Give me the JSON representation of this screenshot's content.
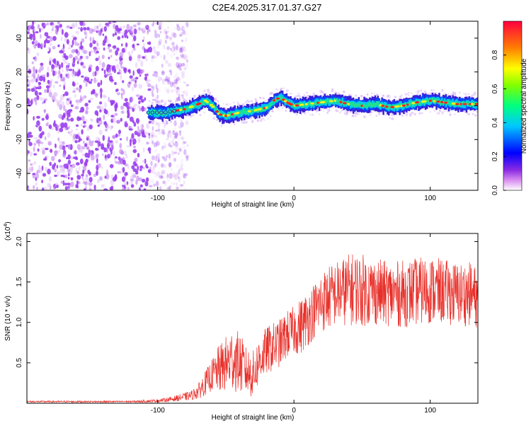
{
  "title": "C2E4.2025.317.01.37.G27",
  "chart_data": [
    {
      "type": "heatmap",
      "name": "spectrogram",
      "xlabel": "Height of straight line (km)",
      "ylabel": "Frequency (Hz)",
      "xlim": [
        -196,
        135
      ],
      "ylim": [
        -50,
        50
      ],
      "x_ticks": [
        -100,
        0,
        100
      ],
      "y_ticks": [
        -40,
        -20,
        0,
        20,
        40
      ],
      "noise_region_x": [
        -196,
        -78
      ],
      "signal_start_x": -107,
      "signal_trace": [
        {
          "x": -107,
          "y": -4
        },
        {
          "x": -95,
          "y": -4
        },
        {
          "x": -80,
          "y": -2
        },
        {
          "x": -70,
          "y": 1
        },
        {
          "x": -65,
          "y": 3
        },
        {
          "x": -60,
          "y": 0
        },
        {
          "x": -55,
          "y": -5
        },
        {
          "x": -50,
          "y": -6
        },
        {
          "x": -40,
          "y": -4
        },
        {
          "x": -30,
          "y": -3
        },
        {
          "x": -20,
          "y": -1
        },
        {
          "x": -15,
          "y": 3
        },
        {
          "x": -10,
          "y": 5
        },
        {
          "x": -5,
          "y": 2
        },
        {
          "x": 0,
          "y": 0
        },
        {
          "x": 10,
          "y": 1
        },
        {
          "x": 20,
          "y": 2
        },
        {
          "x": 30,
          "y": 3
        },
        {
          "x": 40,
          "y": 1
        },
        {
          "x": 50,
          "y": 0
        },
        {
          "x": 60,
          "y": 1
        },
        {
          "x": 70,
          "y": -1
        },
        {
          "x": 80,
          "y": 0
        },
        {
          "x": 90,
          "y": 2
        },
        {
          "x": 100,
          "y": 3
        },
        {
          "x": 110,
          "y": 2
        },
        {
          "x": 120,
          "y": 1
        },
        {
          "x": 135,
          "y": 1
        }
      ],
      "colorbar": {
        "label": "Normalized spectral amplitude",
        "range": [
          0.0,
          1.0
        ],
        "ticks": [
          0.0,
          0.2,
          0.4,
          0.6,
          0.8
        ],
        "tick_labels": [
          "0.0",
          "0.2",
          "0.4",
          "0.6",
          "0.8"
        ]
      }
    },
    {
      "type": "line",
      "name": "snr",
      "xlabel": "Height of straight line (km)",
      "ylabel": "SNR (10 * v/v)",
      "y_scale_label": "(x10",
      "y_scale_exponent": "4",
      "color": "#e8302a",
      "xlim": [
        -196,
        135
      ],
      "ylim": [
        0,
        2.1
      ],
      "x_ticks": [
        -100,
        0,
        100
      ],
      "y_ticks": [
        0.5,
        1.0,
        1.5,
        2.0
      ],
      "y_tick_labels": [
        "0.5",
        "1.0",
        "1.5",
        "2.0"
      ],
      "series": [
        {
          "name": "SNR (x10^4)",
          "x": [
            -196,
            -180,
            -160,
            -140,
            -120,
            -100,
            -90,
            -80,
            -75,
            -70,
            -65,
            -60,
            -55,
            -50,
            -45,
            -40,
            -35,
            -30,
            -25,
            -20,
            -15,
            -10,
            -5,
            0,
            5,
            10,
            15,
            20,
            25,
            30,
            35,
            40,
            45,
            50,
            60,
            70,
            80,
            90,
            100,
            110,
            120,
            130,
            135
          ],
          "center": [
            0.02,
            0.02,
            0.02,
            0.02,
            0.02,
            0.03,
            0.05,
            0.08,
            0.1,
            0.15,
            0.25,
            0.35,
            0.42,
            0.48,
            0.55,
            0.5,
            0.4,
            0.35,
            0.55,
            0.65,
            0.7,
            0.75,
            0.85,
            0.9,
            0.95,
            1.05,
            1.15,
            1.25,
            1.3,
            1.35,
            1.38,
            1.4,
            1.42,
            1.4,
            1.38,
            1.35,
            1.35,
            1.38,
            1.4,
            1.38,
            1.35,
            1.35,
            1.3
          ],
          "amplitude": [
            0.01,
            0.01,
            0.01,
            0.01,
            0.01,
            0.02,
            0.03,
            0.05,
            0.06,
            0.1,
            0.15,
            0.2,
            0.3,
            0.35,
            0.4,
            0.38,
            0.3,
            0.3,
            0.3,
            0.3,
            0.3,
            0.3,
            0.3,
            0.3,
            0.35,
            0.35,
            0.35,
            0.38,
            0.4,
            0.4,
            0.42,
            0.45,
            0.45,
            0.45,
            0.42,
            0.4,
            0.42,
            0.42,
            0.42,
            0.4,
            0.4,
            0.4,
            0.38
          ]
        }
      ]
    }
  ]
}
